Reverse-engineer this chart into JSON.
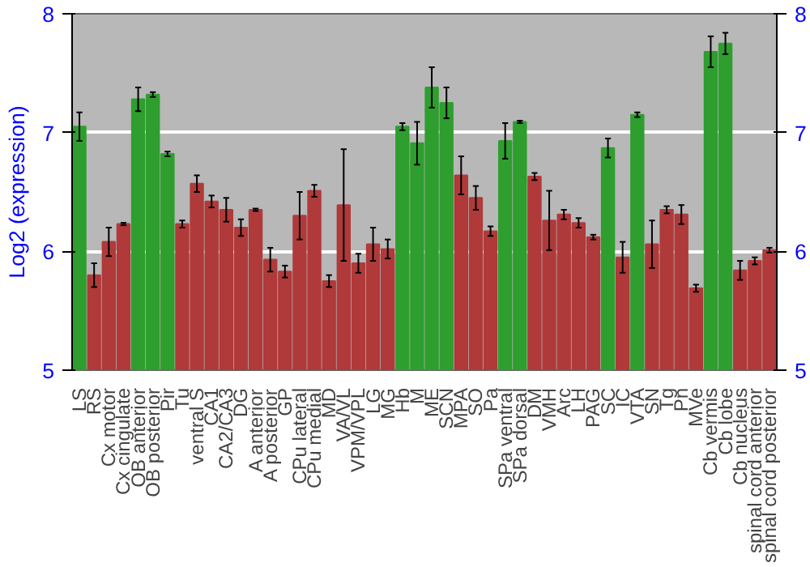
{
  "chart_data": {
    "type": "bar",
    "ylabel": "Log2 (expression)",
    "categories": [
      "LS",
      "RS",
      "Cx motor",
      "Cx cingulate",
      "OB anterior",
      "OB posterior",
      "Pir",
      "Tu",
      "ventral S",
      "CA1",
      "CA2/CA3",
      "DG",
      "A anterior",
      "A posterior",
      "GP",
      "CPu lateral",
      "CPu medial",
      "MD",
      "VA/VL",
      "VPM/VPL",
      "LG",
      "MG",
      "Hb",
      "M",
      "ME",
      "SCN",
      "MPA",
      "SO",
      "Pa",
      "SPa ventral",
      "SPa dorsal",
      "DM",
      "VMH",
      "Arc",
      "LH",
      "PAG",
      "SC",
      "IC",
      "VTA",
      "SN",
      "Tg",
      "Pn",
      "MVe",
      "Cb vermis",
      "Cb lobe",
      "Cb nucleus",
      "spinal cord anterior",
      "spinal cord posterior"
    ],
    "values": [
      7.05,
      5.8,
      6.08,
      6.23,
      7.28,
      7.32,
      6.82,
      6.23,
      6.57,
      6.42,
      6.35,
      6.2,
      6.35,
      5.93,
      5.83,
      6.3,
      6.51,
      5.75,
      6.39,
      5.9,
      6.06,
      6.02,
      7.05,
      6.91,
      7.38,
      7.25,
      6.64,
      6.45,
      6.17,
      6.93,
      7.09,
      6.63,
      6.26,
      6.31,
      6.24,
      6.12,
      6.87,
      5.95,
      7.15,
      6.06,
      6.35,
      6.31,
      5.69,
      7.68,
      7.75,
      5.84,
      5.92,
      6.01
    ],
    "errors": [
      0.12,
      0.1,
      0.12,
      0.01,
      0.1,
      0.02,
      0.02,
      0.03,
      0.07,
      0.05,
      0.1,
      0.07,
      0.01,
      0.1,
      0.05,
      0.2,
      0.05,
      0.05,
      0.47,
      0.08,
      0.14,
      0.08,
      0.03,
      0.18,
      0.17,
      0.13,
      0.16,
      0.1,
      0.04,
      0.15,
      0.01,
      0.03,
      0.25,
      0.04,
      0.04,
      0.02,
      0.08,
      0.13,
      0.02,
      0.2,
      0.03,
      0.08,
      0.03,
      0.13,
      0.09,
      0.08,
      0.03,
      0.02
    ],
    "colors": [
      "#2e9e2e",
      "#b03a3a",
      "#b03a3a",
      "#b03a3a",
      "#2e9e2e",
      "#2e9e2e",
      "#2e9e2e",
      "#b03a3a",
      "#b03a3a",
      "#b03a3a",
      "#b03a3a",
      "#b03a3a",
      "#b03a3a",
      "#b03a3a",
      "#b03a3a",
      "#b03a3a",
      "#b03a3a",
      "#b03a3a",
      "#b03a3a",
      "#b03a3a",
      "#b03a3a",
      "#b03a3a",
      "#2e9e2e",
      "#2e9e2e",
      "#2e9e2e",
      "#2e9e2e",
      "#b03a3a",
      "#b03a3a",
      "#b03a3a",
      "#2e9e2e",
      "#2e9e2e",
      "#b03a3a",
      "#b03a3a",
      "#b03a3a",
      "#b03a3a",
      "#b03a3a",
      "#2e9e2e",
      "#b03a3a",
      "#2e9e2e",
      "#b03a3a",
      "#b03a3a",
      "#b03a3a",
      "#b03a3a",
      "#2e9e2e",
      "#2e9e2e",
      "#b03a3a",
      "#b03a3a",
      "#b03a3a"
    ],
    "ylim": [
      5,
      8
    ],
    "yticks": [
      5,
      6,
      7,
      8
    ],
    "y2lim": [
      5,
      8
    ],
    "y2ticks": [
      5,
      6,
      7,
      8
    ],
    "grid": "y"
  }
}
